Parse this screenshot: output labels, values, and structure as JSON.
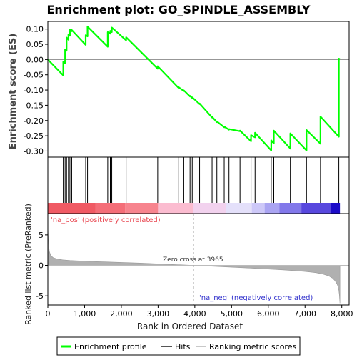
{
  "chart_data": {
    "type": "line",
    "title": "Enrichment plot: GO_SPINDLE_ASSEMBLY",
    "es_panel": {
      "ylabel": "Enrichment score (ES)",
      "ylim": [
        -0.32,
        0.125
      ],
      "yticks": [
        0.1,
        0.05,
        0.0,
        -0.05,
        -0.1,
        -0.15,
        -0.2,
        -0.25,
        -0.3
      ],
      "ytick_labels": [
        "0.10",
        "0.05",
        "0.00",
        "-0.05",
        "-0.10",
        "-0.15",
        "-0.20",
        "-0.25",
        "-0.30"
      ],
      "series": [
        {
          "name": "Enrichment profile",
          "color": "#00ff00",
          "x": [
            0,
            420,
            420,
            470,
            470,
            510,
            510,
            560,
            560,
            600,
            600,
            650,
            650,
            1030,
            1030,
            1080,
            1080,
            1630,
            1630,
            1700,
            1700,
            1740,
            1740,
            2130,
            2130,
            2990,
            2990,
            3550,
            3550,
            3700,
            3700,
            3870,
            3870,
            3930,
            3930,
            4130,
            4130,
            4470,
            4470,
            4600,
            4600,
            4800,
            4800,
            4930,
            4930,
            5230,
            5230,
            5530,
            5530,
            5640,
            5640,
            6080,
            6080,
            6150,
            6150,
            6600,
            6600,
            7040,
            7040,
            7420,
            7420,
            7920,
            7920,
            7950
          ],
          "y": [
            0.0,
            -0.052,
            -0.007,
            -0.012,
            0.033,
            0.029,
            0.072,
            0.065,
            0.083,
            0.078,
            0.098,
            0.093,
            0.097,
            0.048,
            0.08,
            0.076,
            0.108,
            0.042,
            0.09,
            0.085,
            0.094,
            0.09,
            0.105,
            0.063,
            0.073,
            -0.03,
            -0.022,
            -0.092,
            -0.09,
            -0.103,
            -0.101,
            -0.121,
            -0.119,
            -0.126,
            -0.124,
            -0.146,
            -0.144,
            -0.19,
            -0.188,
            -0.205,
            -0.203,
            -0.222,
            -0.22,
            -0.23,
            -0.228,
            -0.235,
            -0.233,
            -0.268,
            -0.248,
            -0.255,
            -0.24,
            -0.298,
            -0.265,
            -0.275,
            -0.233,
            -0.292,
            -0.242,
            -0.298,
            -0.231,
            -0.276,
            -0.187,
            -0.253,
            0.003,
            0.001
          ]
        }
      ]
    },
    "hits": [
      420,
      470,
      510,
      560,
      600,
      650,
      1030,
      1080,
      1630,
      1700,
      1740,
      2130,
      2990,
      3550,
      3700,
      3870,
      3930,
      4130,
      4470,
      4600,
      4800,
      4930,
      5230,
      5530,
      5640,
      6080,
      6150,
      6600,
      7040,
      7420,
      7920
    ],
    "heatmap_bar": {
      "colors_left_to_right": [
        "#f05a64",
        "#f46e78",
        "#f7848e",
        "#fbbcd0",
        "#f2d2ee",
        "#e4e0fa",
        "#cdc8f8",
        "#aaa4f2",
        "#8278ea",
        "#5848de",
        "#1c0cc8"
      ],
      "breaks": [
        0,
        1300,
        2100,
        3000,
        3950,
        4850,
        5550,
        5900,
        6300,
        6900,
        7700,
        7950
      ]
    },
    "metric_panel": {
      "ylabel": "Ranked list metric (PreRanked)",
      "ylim": [
        -6.5,
        8.5
      ],
      "yticks": [
        5,
        0,
        -5
      ],
      "ytick_labels": [
        "5",
        "0",
        "-5"
      ],
      "color": "#b0b0b0",
      "x": [
        0,
        15,
        40,
        80,
        150,
        250,
        400,
        600,
        1000,
        1500,
        2000,
        2500,
        3000,
        3500,
        3965,
        4500,
        5000,
        5500,
        6000,
        6500,
        7000,
        7300,
        7500,
        7650,
        7750,
        7820,
        7870,
        7900,
        7920,
        7935,
        7950
      ],
      "y": [
        6.5,
        4.0,
        2.3,
        1.6,
        1.25,
        1.05,
        0.9,
        0.8,
        0.68,
        0.58,
        0.48,
        0.38,
        0.25,
        0.12,
        0.0,
        -0.15,
        -0.3,
        -0.45,
        -0.6,
        -0.78,
        -1.0,
        -1.2,
        -1.45,
        -1.75,
        -2.1,
        -2.55,
        -3.05,
        -3.5,
        -4.1,
        -4.9,
        -6.2
      ],
      "zero_cross_rank": 3965,
      "zero_cross_label": "Zero cross at 3965",
      "pos_label": "'na_pos' (positively correlated)",
      "neg_label": "'na_neg' (negatively correlated)"
    },
    "xaxis": {
      "xlabel": "Rank in Ordered Dataset",
      "xlim": [
        0,
        8200
      ],
      "xticks": [
        0,
        1000,
        2000,
        3000,
        4000,
        5000,
        6000,
        7000,
        8000
      ],
      "xtick_labels": [
        "0",
        "1,000",
        "2,000",
        "3,000",
        "4,000",
        "5,000",
        "6,000",
        "7,000",
        "8,000"
      ]
    },
    "legend": {
      "placement": "bottom",
      "entries": [
        {
          "label": "Enrichment profile",
          "color": "#00ff00"
        },
        {
          "label": "Hits",
          "color": "#555555"
        },
        {
          "label": "Ranking metric scores",
          "color": "#c8c8c8"
        }
      ]
    }
  }
}
